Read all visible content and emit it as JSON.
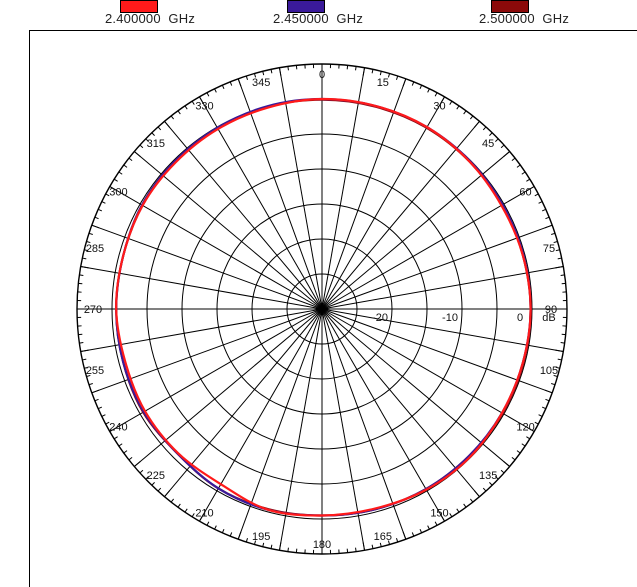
{
  "legend": {
    "items": [
      {
        "label": "2.400000  GHz",
        "color": "#ff1a1a"
      },
      {
        "label": "2.450000  GHz",
        "color": "#3a1a9a"
      },
      {
        "label": "2.500000  GHz",
        "color": "#8b0a0a"
      }
    ]
  },
  "chart_data": {
    "type": "polar",
    "title": "",
    "angle_ticks": [
      "0",
      "15",
      "30",
      "45",
      "60",
      "75",
      "90",
      "105",
      "120",
      "135",
      "150",
      "165",
      "180",
      "195",
      "210",
      "225",
      "240",
      "255",
      "270",
      "285",
      "300",
      "315",
      "330",
      "345"
    ],
    "radial_ticks": [
      "-20",
      "-10",
      "0",
      "dB"
    ],
    "radial_unit": "dB",
    "radial_range_db": [
      -30,
      5
    ],
    "angle_direction": "clockwise",
    "zero_position": "top",
    "grid": true,
    "legend_position": "top",
    "series": [
      {
        "name": "2.400000  GHz",
        "color": "#ff1a1a",
        "angles_deg": [
          0,
          15,
          30,
          45,
          60,
          75,
          90,
          105,
          120,
          135,
          150,
          165,
          180,
          195,
          210,
          225,
          240,
          255,
          270,
          285,
          300,
          315,
          330,
          345
        ],
        "gain_db": [
          0.0,
          0.0,
          0.0,
          -0.2,
          -0.4,
          -0.3,
          -0.2,
          -0.3,
          -0.3,
          -0.1,
          -0.2,
          -0.5,
          -0.5,
          -0.3,
          -1.1,
          -0.9,
          -0.8,
          -0.9,
          -0.6,
          -0.6,
          -0.4,
          -0.4,
          -0.3,
          -0.2
        ]
      },
      {
        "name": "2.450000  GHz",
        "color": "#3a1a9a",
        "angles_deg": [
          0,
          15,
          30,
          45,
          60,
          75,
          90,
          105,
          120,
          135,
          150,
          165,
          180,
          195,
          210,
          225,
          240,
          255,
          270,
          285,
          300,
          315,
          330,
          345
        ],
        "gain_db": [
          0.0,
          0.0,
          0.0,
          -0.1,
          -0.2,
          -0.2,
          -0.2,
          -0.3,
          -0.3,
          -0.3,
          -0.3,
          -0.4,
          -0.5,
          -0.3,
          -0.4,
          -0.8,
          -0.6,
          -0.6,
          -0.6,
          -0.6,
          -0.3,
          -0.2,
          -0.1,
          0.0
        ]
      },
      {
        "name": "2.500000  GHz",
        "color": "#8b0a0a",
        "angles_deg": [
          0,
          15,
          30,
          45,
          60,
          75,
          90,
          105,
          120,
          135,
          150,
          165,
          180,
          195,
          210,
          225,
          240,
          255,
          270,
          285,
          300,
          315,
          330,
          345
        ],
        "gain_db": [
          -0.1,
          -0.1,
          -0.1,
          -0.2,
          -0.3,
          -0.3,
          -0.2,
          -0.2,
          -0.2,
          -0.3,
          -0.3,
          -0.4,
          -0.5,
          -0.4,
          -0.4,
          -0.8,
          -0.5,
          -0.6,
          -0.6,
          -0.6,
          -0.4,
          -0.3,
          -0.2,
          -0.1
        ]
      }
    ]
  }
}
